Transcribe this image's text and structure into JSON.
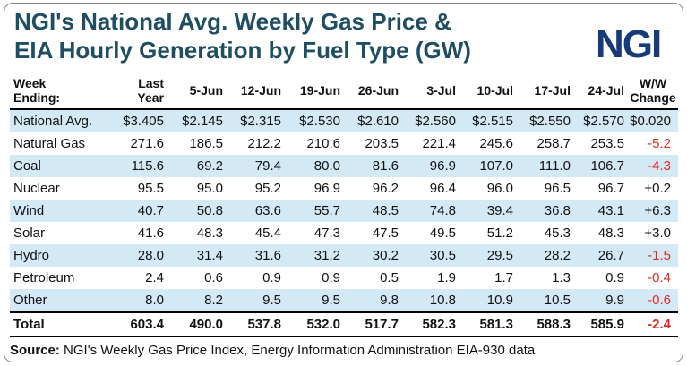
{
  "title_line1": "NGI's National Avg. Weekly Gas Price &",
  "title_line2": "EIA Hourly Generation by Fuel Type (GW)",
  "logo": "NGI",
  "source_label": "Source:",
  "source_text": "NGI's Weekly Gas Price Index,  Energy Information  Administration  EIA-930  data",
  "chart_data": {
    "type": "table",
    "header_first": [
      "Week",
      "Ending:"
    ],
    "columns": [
      "Last Year",
      "5-Jun",
      "12-Jun",
      "19-Jun",
      "26-Jun",
      "3-Jul",
      "10-Jul",
      "17-Jul",
      "24-Jul"
    ],
    "change_header": [
      "W/W",
      "Change"
    ],
    "rows": [
      {
        "label": "National Avg.",
        "values": [
          "$3.405",
          "$2.145",
          "$2.315",
          "$2.530",
          "$2.610",
          "$2.560",
          "$2.515",
          "$2.550",
          "$2.570"
        ],
        "change": "$0.020"
      },
      {
        "label": "Natural Gas",
        "values": [
          "271.6",
          "186.5",
          "212.2",
          "210.6",
          "203.5",
          "221.4",
          "245.6",
          "258.7",
          "253.5"
        ],
        "change": "-5.2"
      },
      {
        "label": "Coal",
        "values": [
          "115.6",
          "69.2",
          "79.4",
          "80.0",
          "81.6",
          "96.9",
          "107.0",
          "111.0",
          "106.7"
        ],
        "change": "-4.3"
      },
      {
        "label": "Nuclear",
        "values": [
          "95.5",
          "95.0",
          "95.2",
          "96.9",
          "96.2",
          "96.4",
          "96.0",
          "96.5",
          "96.7"
        ],
        "change": "+0.2"
      },
      {
        "label": "Wind",
        "values": [
          "40.7",
          "50.8",
          "63.6",
          "55.7",
          "48.5",
          "74.8",
          "39.4",
          "36.8",
          "43.1"
        ],
        "change": "+6.3"
      },
      {
        "label": "Solar",
        "values": [
          "41.6",
          "48.3",
          "45.4",
          "47.3",
          "47.5",
          "49.5",
          "51.2",
          "45.3",
          "48.3"
        ],
        "change": "+3.0"
      },
      {
        "label": "Hydro",
        "values": [
          "28.0",
          "31.4",
          "31.6",
          "31.2",
          "30.2",
          "30.5",
          "29.5",
          "28.2",
          "26.7"
        ],
        "change": "-1.5"
      },
      {
        "label": "Petroleum",
        "values": [
          "2.4",
          "0.6",
          "0.9",
          "0.9",
          "0.5",
          "1.9",
          "1.7",
          "1.3",
          "0.9"
        ],
        "change": "-0.4"
      },
      {
        "label": "Other",
        "values": [
          "8.0",
          "8.2",
          "9.5",
          "9.5",
          "9.8",
          "10.8",
          "10.9",
          "10.5",
          "9.9"
        ],
        "change": "-0.6"
      }
    ],
    "total": {
      "label": "Total",
      "values": [
        "603.4",
        "490.0",
        "537.8",
        "532.0",
        "517.7",
        "582.3",
        "581.3",
        "588.3",
        "585.9"
      ],
      "change": "-2.4"
    }
  },
  "colors": {
    "title": "#1f4e63",
    "logo": "#173a78",
    "stripe": "#d4e9f6",
    "negative": "#e02b20"
  }
}
